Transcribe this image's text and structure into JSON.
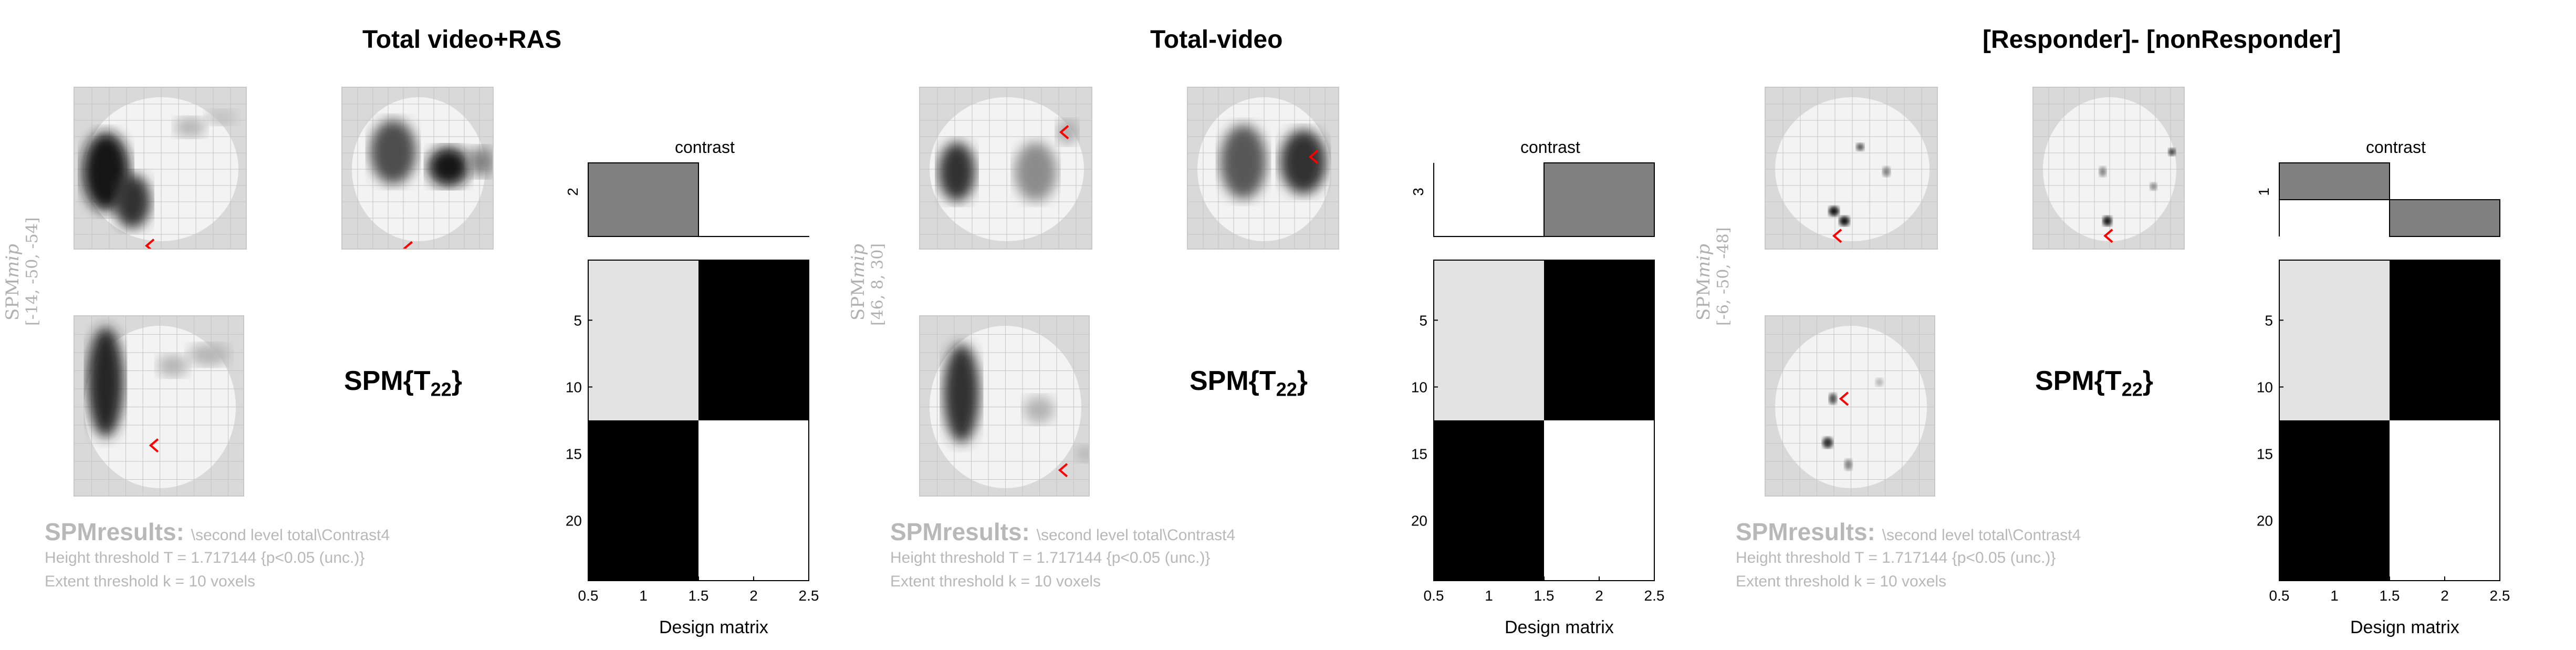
{
  "panels": [
    {
      "title": "Total video+RAS",
      "spm_label": "SPM",
      "spm_label_italic": "mip",
      "coords": "[-14, -50, -54]",
      "stat_main": "SPM{T",
      "stat_sub": "22",
      "stat_close": "}",
      "results_head": "SPMresults:",
      "results_path": "\\second level total\\Contrast4",
      "height_threshold": "Height threshold T = 1.717144  {p<0.05 (unc.)}",
      "extent_threshold": "Extent threshold k = 10 voxels",
      "contrast_title": "contrast",
      "contrast_weights": [
        2,
        0
      ],
      "contrast_tick": "2",
      "design_matrix_label": "Design matrix"
    },
    {
      "title": "Total-video",
      "spm_label": "SPM",
      "spm_label_italic": "mip",
      "coords": "[46, 8, 30]",
      "stat_main": "SPM{T",
      "stat_sub": "22",
      "stat_close": "}",
      "results_head": "SPMresults:",
      "results_path": "\\second level total\\Contrast4",
      "height_threshold": "Height threshold T = 1.717144  {p<0.05 (unc.)}",
      "extent_threshold": "Extent threshold k = 10 voxels",
      "contrast_title": "contrast",
      "contrast_weights": [
        0,
        3
      ],
      "contrast_tick": "3",
      "design_matrix_label": "Design matrix"
    },
    {
      "title": "[Responder]- [nonResponder]",
      "spm_label": "SPM",
      "spm_label_italic": "mip",
      "coords": "[-6, -50, -48]",
      "stat_main": "SPM{T",
      "stat_sub": "22",
      "stat_close": "}",
      "results_head": "SPMresults:",
      "results_path": "\\second level total\\Contrast4",
      "height_threshold": "Height threshold T = 1.717144  {p<0.05 (unc.)}",
      "extent_threshold": "Extent threshold k = 10 voxels",
      "contrast_title": "contrast",
      "contrast_weights": [
        1,
        -1
      ],
      "contrast_tick": "1",
      "design_matrix_label": "Design matrix"
    }
  ],
  "design_matrix": {
    "x_ticks": [
      "0.5",
      "1",
      "1.5",
      "2",
      "2.5"
    ],
    "y_ticks": [
      "5",
      "10",
      "15",
      "20"
    ],
    "xlim": [
      0.5,
      2.5
    ],
    "ylim": [
      0.5,
      24.5
    ],
    "colors": {
      "light": "#e3e3e3",
      "dark": "#000000",
      "white": "#ffffff",
      "contrast_bar": "#808080"
    }
  },
  "colors": {
    "cursor": "#ff0000",
    "mip_bg": "#d9d9d9",
    "grid": "#bbbbbb",
    "label_grey": "#b0b0b0"
  }
}
